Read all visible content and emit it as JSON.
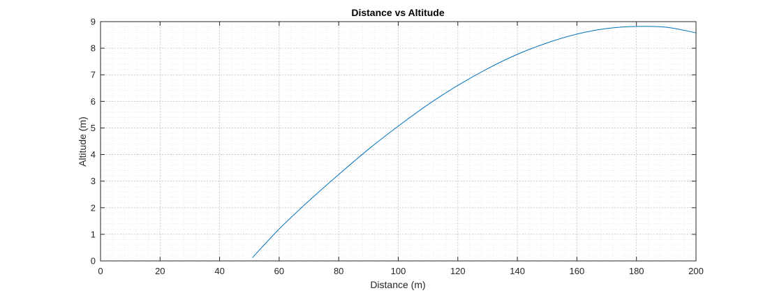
{
  "chart_data": {
    "type": "line",
    "title": "Distance vs Altitude",
    "xlabel": "Distance (m)",
    "ylabel": "Altitude (m)",
    "xlim": [
      0,
      200
    ],
    "ylim": [
      0,
      9
    ],
    "x_ticks": [
      0,
      20,
      40,
      60,
      80,
      100,
      120,
      140,
      160,
      180,
      200
    ],
    "y_ticks": [
      0,
      1,
      2,
      3,
      4,
      5,
      6,
      7,
      8,
      9
    ],
    "grid": true,
    "minor_grid": true,
    "box": true,
    "series": [
      {
        "color": "#0072bd",
        "x": [
          51,
          60,
          70,
          80,
          90,
          100,
          110,
          120,
          130,
          140,
          150,
          160,
          170,
          180,
          190,
          200
        ],
        "y": [
          0.12,
          1.2,
          2.26,
          3.25,
          4.2,
          5.07,
          5.88,
          6.6,
          7.23,
          7.77,
          8.2,
          8.53,
          8.74,
          8.82,
          8.79,
          8.58
        ]
      }
    ]
  }
}
